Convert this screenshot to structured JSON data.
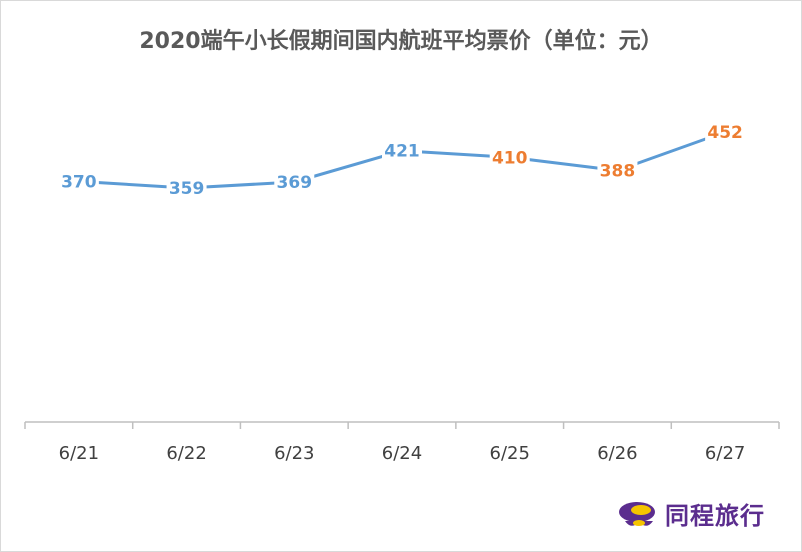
{
  "chart_data": {
    "type": "line",
    "title": "2020端午小长假期间国内航班平均票价（单位：元）",
    "categories": [
      "6/21",
      "6/22",
      "6/23",
      "6/24",
      "6/25",
      "6/26",
      "6/27"
    ],
    "series": [
      {
        "values": [
          370,
          359,
          369,
          421,
          410,
          388,
          452
        ],
        "color": "#5b9bd5"
      }
    ],
    "label_colors": [
      "#5b9bd5",
      "#5b9bd5",
      "#5b9bd5",
      "#5b9bd5",
      "#ed7d31",
      "#ed7d31",
      "#ed7d31"
    ],
    "ylim": [
      0,
      500
    ],
    "xlabel": "",
    "ylabel": "",
    "grid": false,
    "legend": "none"
  },
  "brand": {
    "name": "同程旅行",
    "color": "#5b2d8e",
    "accent": "#f5c400"
  },
  "colors": {
    "axis": "#bfbfbf",
    "tick_text": "#404040"
  }
}
